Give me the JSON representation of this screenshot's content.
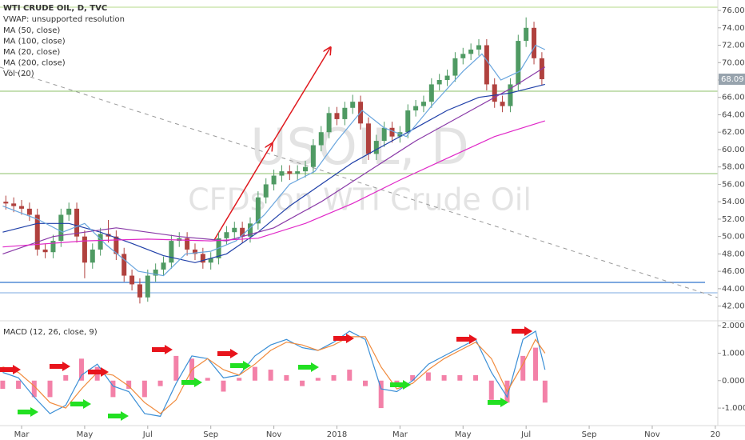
{
  "chart_data": [
    {
      "type": "candlestick",
      "title": "WTI CRUDE OIL, D, TVC",
      "vwap_label": "VWAP: unsupported resolution",
      "volume_label": "Vol (20)",
      "watermark": [
        "USOIL, D",
        "CFDs on WTI Crude Oil"
      ],
      "up_color": "#4f9a63",
      "down_color": "#b0413e",
      "xlim": [
        1.315,
        24.08
      ],
      "ylim": [
        40.4,
        77.2
      ],
      "yticks": [
        {
          "value": 42,
          "label": "42.00"
        },
        {
          "value": 44,
          "label": "44.00"
        },
        {
          "value": 46,
          "label": "46.00"
        },
        {
          "value": 48,
          "label": "48.00"
        },
        {
          "value": 50,
          "label": "50.00"
        },
        {
          "value": 52,
          "label": "52.00"
        },
        {
          "value": 54,
          "label": "54.00"
        },
        {
          "value": 56,
          "label": "56.00"
        },
        {
          "value": 58,
          "label": "58.00"
        },
        {
          "value": 60,
          "label": "60.00"
        },
        {
          "value": 62,
          "label": "62.00"
        },
        {
          "value": 64,
          "label": "64.00"
        },
        {
          "value": 66,
          "label": "66.00"
        },
        {
          "value": 68,
          "label": "68.00"
        },
        {
          "value": 70,
          "label": "70.00"
        },
        {
          "value": 72,
          "label": "72.00"
        },
        {
          "value": 74,
          "label": "74.00"
        },
        {
          "value": 76,
          "label": "76.00"
        }
      ],
      "x": [
        1.5,
        1.75,
        2,
        2.25,
        2.5,
        2.75,
        3,
        3.25,
        3.5,
        3.75,
        4,
        4.25,
        4.5,
        4.75,
        5,
        5.25,
        5.5,
        5.75,
        6,
        6.25,
        6.5,
        6.75,
        7,
        7.25,
        7.5,
        7.75,
        8,
        8.25,
        8.5,
        8.75,
        9,
        9.25,
        9.5,
        9.75,
        10,
        10.25,
        10.5,
        10.75,
        11,
        11.25,
        11.5,
        11.75,
        12,
        12.25,
        12.5,
        12.75,
        13,
        13.25,
        13.5,
        13.75,
        14,
        14.25,
        14.5,
        14.75,
        15,
        15.25,
        15.5,
        15.75,
        16,
        16.25,
        16.5,
        16.75,
        17,
        17.25,
        17.5,
        17.75,
        18,
        18.25,
        18.5
      ],
      "open": [
        54,
        53.8,
        53.5,
        53.2,
        52.5,
        48.5,
        48.2,
        49.5,
        52.5,
        53.2,
        50,
        47,
        48.5,
        50.3,
        50,
        48,
        45.5,
        44.5,
        43,
        45.5,
        46.2,
        47,
        49.5,
        49.8,
        48.5,
        48,
        47,
        47.5,
        49.8,
        50.5,
        51,
        50,
        51.5,
        54.5,
        56,
        57,
        57.5,
        57.2,
        57.5,
        58,
        60.5,
        62,
        64.2,
        63.5,
        64.8,
        65.5,
        63,
        59.5,
        61,
        62.5,
        61.5,
        62,
        64.5,
        65,
        65.5,
        67.5,
        68,
        68.5,
        70.5,
        71,
        71.5,
        72,
        67.5,
        65.5,
        65,
        67.5,
        72.5,
        74,
        70.5
      ],
      "high": [
        54.7,
        54.5,
        54.2,
        53.9,
        53.2,
        49.2,
        50.2,
        53.2,
        53.9,
        53.9,
        50.7,
        49.2,
        51,
        51.9,
        50.7,
        48.7,
        46.2,
        45.2,
        46.2,
        46.9,
        47.7,
        50.2,
        50.5,
        50.5,
        49.2,
        48.7,
        48.2,
        50.5,
        51.2,
        51.7,
        51.7,
        52.2,
        55.2,
        56.7,
        57.7,
        58.2,
        58.2,
        58.2,
        58.7,
        61.2,
        62.7,
        64.9,
        64.9,
        65.5,
        66.3,
        66.2,
        63.7,
        61.7,
        63.2,
        63.2,
        62.7,
        65.2,
        65.7,
        66.2,
        68.2,
        68.7,
        69.2,
        71.2,
        71.7,
        72.2,
        72.7,
        72.7,
        68.2,
        66.2,
        68.2,
        73.2,
        75.2,
        74.7,
        71.2
      ],
      "low": [
        53.1,
        52.8,
        52.5,
        51.8,
        47.8,
        47.5,
        47.5,
        48.8,
        51.8,
        49.3,
        45.2,
        46.3,
        47.8,
        49.3,
        47.3,
        44.8,
        43.8,
        42.3,
        42.5,
        44.8,
        45.5,
        46.3,
        48.8,
        47.8,
        47.3,
        46.3,
        46.2,
        46.8,
        49.1,
        49.8,
        49.3,
        49.3,
        50.8,
        53.8,
        55.3,
        56.3,
        56.5,
        56.5,
        56.8,
        57.3,
        59.8,
        61.3,
        62.8,
        62.8,
        64.1,
        62.3,
        58.8,
        58.8,
        60.3,
        60.8,
        60.8,
        61.3,
        63.8,
        64.3,
        64.8,
        66.8,
        67.3,
        67.8,
        69.8,
        70.3,
        70.8,
        66.8,
        64.8,
        64.3,
        64.3,
        66.8,
        71.8,
        69.8,
        67.4
      ],
      "close": [
        53.8,
        53.5,
        53.2,
        52.5,
        48.5,
        48.2,
        49.5,
        52.5,
        53.2,
        50,
        47,
        48.5,
        50.3,
        50,
        48,
        45.5,
        44.5,
        43,
        45.5,
        46.2,
        47,
        49.5,
        49.8,
        48.5,
        48,
        47,
        47.5,
        49.8,
        50.5,
        51,
        50,
        51.5,
        54.5,
        56,
        57,
        57.5,
        57.2,
        57.5,
        58,
        60.5,
        62,
        64.2,
        63.5,
        64.8,
        65.5,
        63,
        59.5,
        61,
        62.5,
        61.5,
        62,
        64.5,
        65,
        65.5,
        67.5,
        68,
        68.5,
        70.5,
        71,
        71.5,
        72,
        67.5,
        65.5,
        65,
        67.5,
        72.5,
        74,
        70.5,
        68.09
      ],
      "series": [
        {
          "name": "MA (50, close)",
          "color": "#1f3fa8",
          "x": [
            1.4,
            2.5,
            3.5,
            4.5,
            5.5,
            6.5,
            7.5,
            8.5,
            9.5,
            10.5,
            11.5,
            12.5,
            13.5,
            14.5,
            15.5,
            16.5,
            17.5,
            18.6
          ],
          "values": [
            50.5,
            51.5,
            51.5,
            50.5,
            49.2,
            47.8,
            47,
            48,
            50.5,
            53.5,
            56,
            58.5,
            60.5,
            62.5,
            64.5,
            66,
            66.5,
            67.5
          ]
        },
        {
          "name": "MA (100, close)",
          "color": "#8a3aa8",
          "x": [
            1.4,
            3,
            5,
            7,
            8.5,
            10,
            11.5,
            13,
            14.5,
            16,
            17.5,
            18.6
          ],
          "values": [
            48,
            50,
            51,
            50,
            49.5,
            51,
            54,
            57.5,
            61,
            64,
            67,
            69.5
          ]
        },
        {
          "name": "MA (20, close)",
          "color": "#6aa6de",
          "x": [
            1.4,
            2.5,
            3.3,
            4,
            4.7,
            5.7,
            6.5,
            7.2,
            8,
            8.8,
            9.7,
            10.5,
            11.3,
            12,
            12.8,
            13.5,
            14.2,
            15,
            16,
            16.6,
            17.2,
            17.8,
            18.3,
            18.6
          ],
          "values": [
            53.5,
            52,
            50.5,
            51.5,
            49,
            46,
            45.5,
            48,
            48.3,
            49.5,
            52.5,
            56,
            57.5,
            61,
            64.5,
            62.5,
            61.5,
            65,
            69,
            71,
            68,
            69,
            72,
            71.5
          ]
        },
        {
          "name": "MA (200, close)",
          "color": "#e028c8",
          "x": [
            1.4,
            4,
            6,
            8,
            9.5,
            11,
            12.5,
            14,
            15.5,
            17,
            18.6
          ],
          "values": [
            48.8,
            49.5,
            49.7,
            49.5,
            49.8,
            51.5,
            53.8,
            56.5,
            59,
            61.5,
            63.3
          ]
        }
      ]
    },
    {
      "type": "line",
      "title": "MACD (12, 26, close, 9)",
      "xlim": [
        1.315,
        24.08
      ],
      "ylim": [
        -1.58,
        2.15
      ],
      "xticks": [
        {
          "value": 2,
          "label": "Mar"
        },
        {
          "value": 4,
          "label": "May"
        },
        {
          "value": 6,
          "label": "Jul"
        },
        {
          "value": 8,
          "label": "Sep"
        },
        {
          "value": 10,
          "label": "Nov"
        },
        {
          "value": 12,
          "label": "2018"
        },
        {
          "value": 14,
          "label": "Mar"
        },
        {
          "value": 16,
          "label": "May"
        },
        {
          "value": 18,
          "label": "Jul"
        },
        {
          "value": 20,
          "label": "Sep"
        },
        {
          "value": 22,
          "label": "Nov"
        },
        {
          "value": 24,
          "label": "20"
        }
      ],
      "yticks": [
        {
          "value": -1,
          "label": "-1.0000"
        },
        {
          "value": 0,
          "label": "0.0000"
        },
        {
          "value": 1,
          "label": "1.0000"
        },
        {
          "value": 2,
          "label": "2.0000"
        }
      ],
      "x": [
        1.4,
        1.9,
        2.4,
        2.9,
        3.4,
        3.9,
        4.4,
        4.9,
        5.4,
        5.9,
        6.4,
        6.9,
        7.4,
        7.9,
        8.4,
        8.9,
        9.4,
        9.9,
        10.4,
        10.9,
        11.4,
        11.9,
        12.4,
        12.9,
        13.4,
        13.9,
        14.4,
        14.9,
        15.4,
        15.9,
        16.4,
        16.9,
        17.4,
        17.9,
        18.3,
        18.6
      ],
      "series": [
        {
          "color": "#3b8fd6",
          "values": [
            0.3,
            0.1,
            -0.6,
            -1.2,
            -0.9,
            0.2,
            0.6,
            -0.2,
            -0.4,
            -1.2,
            -1.3,
            -0.1,
            0.9,
            0.8,
            0.1,
            0.2,
            0.9,
            1.3,
            1.5,
            1.2,
            1.1,
            1.4,
            1.8,
            1.5,
            -0.3,
            -0.4,
            0,
            0.6,
            0.9,
            1.2,
            1.5,
            0.3,
            -0.6,
            1.5,
            1.8,
            0.4
          ]
        },
        {
          "color": "#f08a3c",
          "values": [
            0.5,
            0.3,
            -0.2,
            -0.8,
            -1,
            -0.3,
            0.3,
            0.2,
            -0.2,
            -0.8,
            -1.2,
            -0.7,
            0.4,
            0.8,
            0.4,
            0.2,
            0.6,
            1.1,
            1.4,
            1.3,
            1.1,
            1.3,
            1.6,
            1.6,
            0.5,
            -0.3,
            -0.1,
            0.4,
            0.8,
            1.1,
            1.4,
            0.8,
            -0.4,
            0.6,
            1.5,
            1
          ]
        }
      ],
      "histogram": {
        "color": "#f06292",
        "values": [
          -0.3,
          -0.3,
          -0.6,
          -0.6,
          0.2,
          0.8,
          0.5,
          -0.6,
          -0.3,
          -0.6,
          -0.2,
          0.9,
          0.8,
          0.1,
          -0.4,
          0.1,
          0.5,
          0.4,
          0.2,
          -0.2,
          0.1,
          0.2,
          0.4,
          -0.2,
          -1,
          -0.2,
          0.2,
          0.3,
          0.2,
          0.2,
          0.2,
          -0.7,
          -0.8,
          0.9,
          1.2,
          -0.8
        ]
      }
    }
  ]
}
